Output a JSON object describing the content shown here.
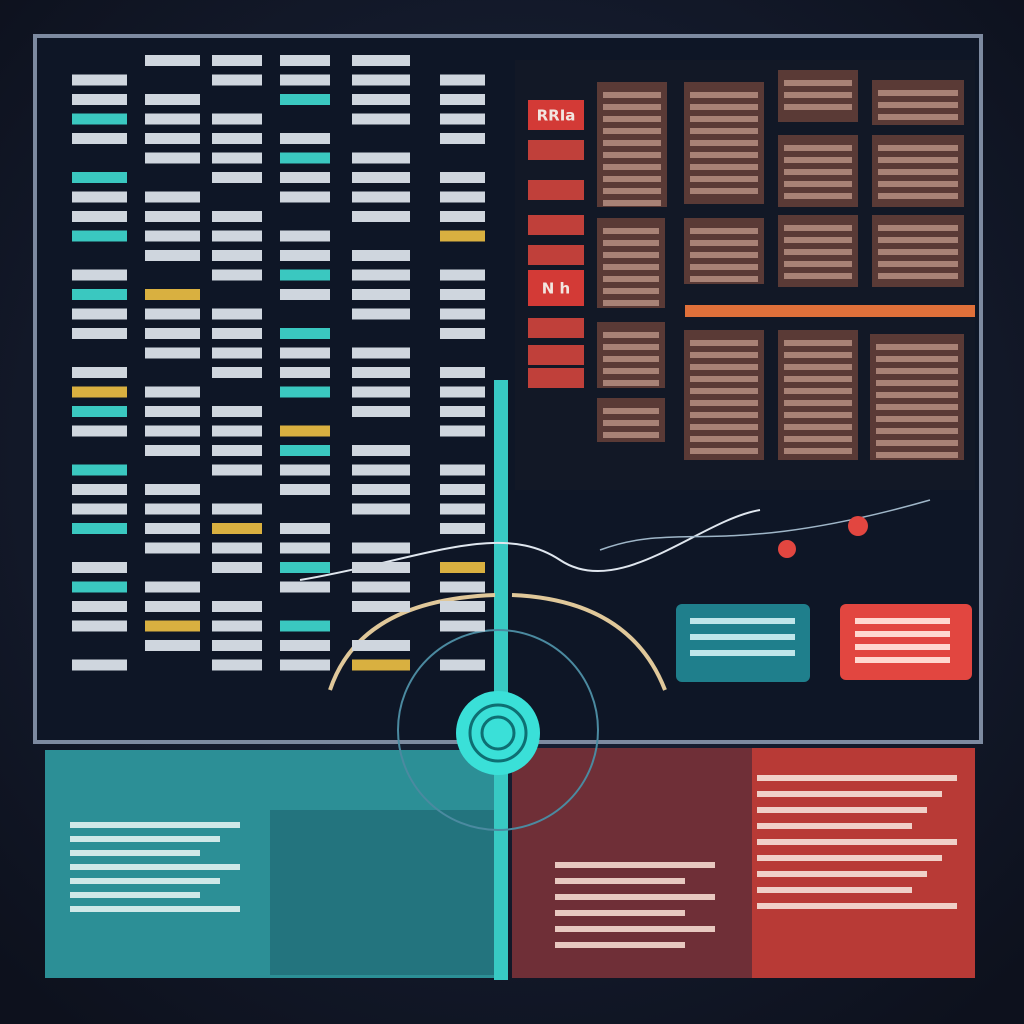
{
  "panels": {
    "red_tabs": [
      "RRIa",
      "N h"
    ]
  }
}
